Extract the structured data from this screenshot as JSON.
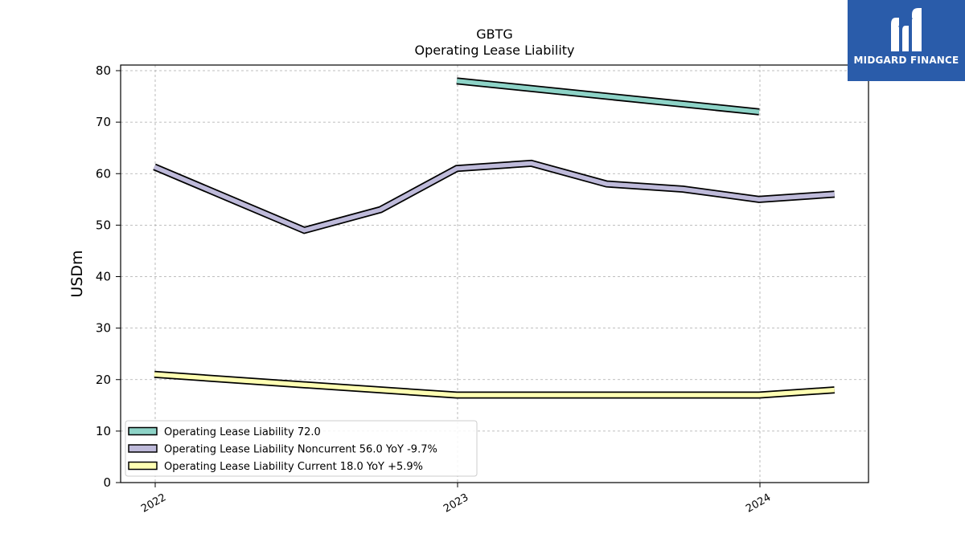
{
  "brand": {
    "name": "MIDGARD FINANCE",
    "bg_color": "#2a5caa"
  },
  "chart_data": {
    "type": "line",
    "title": "GBTG",
    "subtitle": "Operating Lease Liability",
    "ylabel": "USDm",
    "xlabel": "",
    "ylim": [
      0,
      80
    ],
    "yticks": [
      0,
      10,
      20,
      30,
      40,
      50,
      60,
      70,
      80
    ],
    "xlim": [
      "2021-11-21",
      "2024-04-30"
    ],
    "xticks": [
      {
        "label": "2022",
        "date": "2022-01-01"
      },
      {
        "label": "2023",
        "date": "2023-01-01"
      },
      {
        "label": "2024",
        "date": "2024-01-01"
      }
    ],
    "grid": true,
    "legend_position": "lower-left",
    "series": [
      {
        "name": "Operating Lease Liability",
        "legend_label": "Operating Lease Liability  72.0",
        "color": "#8dd3c7",
        "points": [
          {
            "x": "2022-12-31",
            "y": 78.0
          },
          {
            "x": "2023-12-31",
            "y": 72.0
          }
        ]
      },
      {
        "name": "Operating Lease Liability Noncurrent",
        "legend_label": "Operating Lease Liability Noncurrent  56.0 YoY -9.7%",
        "color": "#bebada",
        "points": [
          {
            "x": "2021-12-31",
            "y": 61.3
          },
          {
            "x": "2022-06-30",
            "y": 49.0
          },
          {
            "x": "2022-09-30",
            "y": 53.0
          },
          {
            "x": "2022-12-31",
            "y": 61.0
          },
          {
            "x": "2023-03-31",
            "y": 62.0
          },
          {
            "x": "2023-06-30",
            "y": 58.0
          },
          {
            "x": "2023-09-30",
            "y": 57.0
          },
          {
            "x": "2023-12-31",
            "y": 55.0
          },
          {
            "x": "2024-03-31",
            "y": 56.0
          }
        ]
      },
      {
        "name": "Operating Lease Liability Current",
        "legend_label": "Operating Lease Liability Current  18.0 YoY +5.9%",
        "color": "#ffffb3",
        "points": [
          {
            "x": "2021-12-31",
            "y": 21.0
          },
          {
            "x": "2022-06-30",
            "y": 19.0
          },
          {
            "x": "2022-12-31",
            "y": 17.0
          },
          {
            "x": "2023-03-31",
            "y": 17.0
          },
          {
            "x": "2023-06-30",
            "y": 17.0
          },
          {
            "x": "2023-09-30",
            "y": 17.0
          },
          {
            "x": "2023-12-31",
            "y": 17.0
          },
          {
            "x": "2024-03-31",
            "y": 18.0
          }
        ]
      }
    ]
  }
}
